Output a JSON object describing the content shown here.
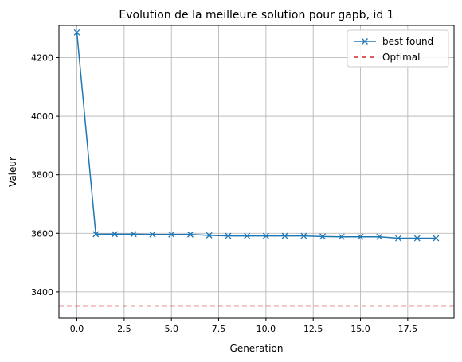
{
  "chart_data": {
    "type": "line",
    "title": "Evolution de la meilleure solution pour gapb, id 1",
    "xlabel": "Generation",
    "ylabel": "Valeur",
    "xlim": [
      -0.95,
      19.95
    ],
    "ylim": [
      3310,
      4310
    ],
    "grid": true,
    "legend_position": "top-right",
    "x_ticks": [
      0,
      2.5,
      5,
      7.5,
      10,
      12.5,
      15,
      17.5
    ],
    "x_tick_labels": [
      "0.0",
      "2.5",
      "5.0",
      "7.5",
      "10.0",
      "12.5",
      "15.0",
      "17.5"
    ],
    "y_ticks": [
      3400,
      3600,
      3800,
      4000,
      4200
    ],
    "y_tick_labels": [
      "3400",
      "3600",
      "3800",
      "4000",
      "4200"
    ],
    "series": [
      {
        "name": "best found",
        "color": "#1f77b4",
        "marker": "x",
        "x": [
          0,
          1,
          2,
          3,
          4,
          5,
          6,
          7,
          8,
          9,
          10,
          11,
          12,
          13,
          14,
          15,
          16,
          17,
          18,
          19
        ],
        "values": [
          4286,
          3597,
          3597,
          3597,
          3596,
          3596,
          3596,
          3593,
          3591,
          3591,
          3591,
          3591,
          3591,
          3589,
          3588,
          3588,
          3588,
          3583,
          3583,
          3583
        ]
      }
    ],
    "reference_line": {
      "name": "Optimal",
      "value": 3352,
      "color": "#d62728",
      "style": "dashed"
    }
  }
}
